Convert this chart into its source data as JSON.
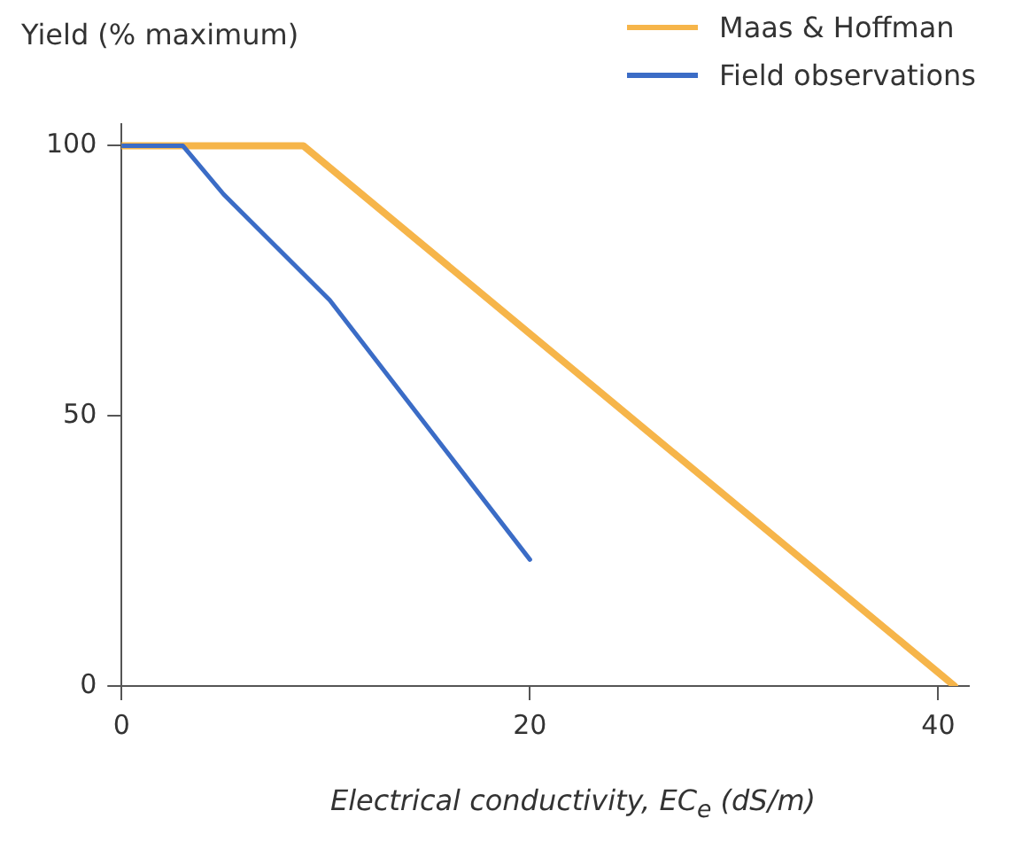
{
  "chart_data": {
    "type": "line",
    "ylabel": "Yield (% maximum)",
    "xlabel": "Electrical conductivity, EC$_{e}$ (dS/m)",
    "xlim": [
      0,
      41.5
    ],
    "ylim": [
      0,
      104
    ],
    "xticks": [
      0,
      20,
      40
    ],
    "yticks": [
      0,
      50,
      100
    ],
    "grid": false,
    "legend": "top right",
    "marker": "none",
    "line_style": "solid",
    "series": [
      {
        "name": "Maas & Hoffman",
        "color": "#f6b54a",
        "x": [
          0,
          8.9,
          40.8
        ],
        "values": [
          100,
          100,
          0
        ]
      },
      {
        "name": "Field observations",
        "color": "#3b6cc6",
        "x": [
          0,
          3,
          5,
          10.2,
          20
        ],
        "values": [
          100,
          100,
          91,
          71.4,
          23.4
        ]
      }
    ]
  }
}
